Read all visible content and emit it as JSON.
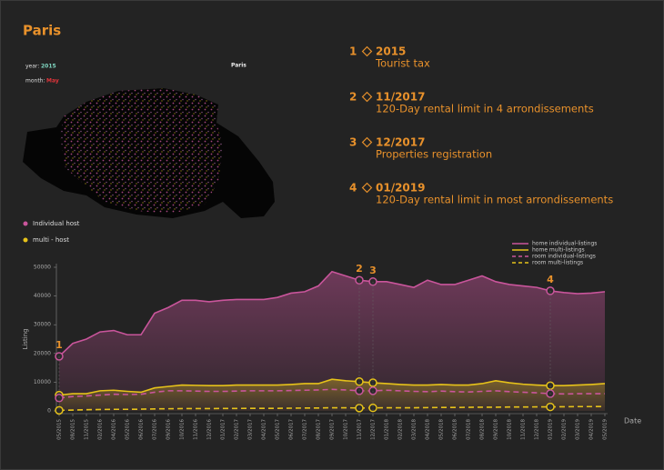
{
  "page_title": "Paris",
  "map": {
    "year_label": "year:",
    "year": "2015",
    "month_label": "month:",
    "month": "May",
    "name": "Paris"
  },
  "map_legend": [
    {
      "name": "Individual host",
      "color": "#c9559b"
    },
    {
      "name": "multi - host",
      "color": "#e6c21a"
    }
  ],
  "events": [
    {
      "number": "1",
      "date": "2015",
      "text": "Tourist tax"
    },
    {
      "number": "2",
      "date": "11/2017",
      "text": "120-Day rental limit in 4 arrondissements"
    },
    {
      "number": "3",
      "date": "12/2017",
      "text": "Properties registration"
    },
    {
      "number": "4",
      "date": "01/2019",
      "text": "120-Day rental limit in most arrondissements"
    }
  ],
  "chart_data": {
    "type": "line",
    "xlabel": "Date",
    "ylabel": "Listing",
    "categories": [
      "05/2015",
      "08/2015",
      "11/2015",
      "02/2016",
      "04/2016",
      "05/2016",
      "06/2016",
      "07/2016",
      "09/2016",
      "10/2016",
      "11/2016",
      "12/2016",
      "01/2017",
      "02/2017",
      "03/2017",
      "04/2017",
      "05/2017",
      "06/2017",
      "07/2017",
      "08/2017",
      "09/2017",
      "10/2017",
      "11/2017",
      "12/2017",
      "01/2018",
      "02/2018",
      "03/2018",
      "04/2018",
      "05/2018",
      "06/2018",
      "07/2018",
      "08/2018",
      "09/2018",
      "10/2018",
      "11/2018",
      "12/2018",
      "01/2019",
      "02/2019",
      "03/2019",
      "04/2019",
      "05/2019"
    ],
    "series": [
      {
        "name": "home individual-listings",
        "color": "#c9559b",
        "dashed": false,
        "values": [
          19000,
          23500,
          25000,
          27500,
          28000,
          26500,
          26500,
          34000,
          36000,
          38500,
          38500,
          38000,
          38500,
          38800,
          38800,
          38800,
          39500,
          41000,
          41500,
          43500,
          48500,
          47000,
          45500,
          45000,
          45000,
          44000,
          43000,
          45500,
          44000,
          44000,
          45500,
          47000,
          45000,
          44000,
          43500,
          43000,
          41800,
          41200,
          40800,
          41000,
          41500
        ]
      },
      {
        "name": "home multi-listings",
        "color": "#e6c21a",
        "dashed": false,
        "values": [
          5500,
          6000,
          6000,
          7000,
          7200,
          6800,
          6500,
          8000,
          8500,
          9000,
          8900,
          8800,
          8800,
          9000,
          9000,
          9000,
          9000,
          9200,
          9500,
          9500,
          11000,
          10500,
          10200,
          9800,
          9500,
          9200,
          9000,
          9000,
          9200,
          9000,
          9000,
          9500,
          10500,
          9800,
          9300,
          9000,
          8800,
          8800,
          9000,
          9200,
          9500
        ]
      },
      {
        "name": "room individual-listings",
        "color": "#c9559b",
        "dashed": true,
        "values": [
          4500,
          5000,
          5200,
          5500,
          5800,
          5700,
          5800,
          6500,
          7000,
          7000,
          6900,
          6800,
          6800,
          6900,
          7000,
          7000,
          7000,
          7100,
          7200,
          7300,
          7500,
          7300,
          7000,
          7000,
          7200,
          7000,
          6800,
          6700,
          6900,
          6700,
          6600,
          6800,
          7000,
          6700,
          6500,
          6300,
          6000,
          5900,
          6000,
          6000,
          6000
        ]
      },
      {
        "name": "room multi-listings",
        "color": "#e6c21a",
        "dashed": true,
        "values": [
          200,
          300,
          400,
          500,
          550,
          550,
          600,
          700,
          750,
          800,
          800,
          800,
          850,
          850,
          900,
          900,
          900,
          950,
          1000,
          1000,
          1100,
          1100,
          1000,
          1050,
          1100,
          1100,
          1100,
          1150,
          1200,
          1200,
          1250,
          1300,
          1300,
          1350,
          1350,
          1400,
          1400,
          1450,
          1500,
          1500,
          1550
        ]
      }
    ],
    "annotations": [
      {
        "label": "1",
        "x": "05/2015"
      },
      {
        "label": "2",
        "x": "11/2017"
      },
      {
        "label": "3",
        "x": "12/2017"
      },
      {
        "label": "4",
        "x": "01/2019"
      }
    ],
    "ylim": [
      0,
      50000
    ],
    "yticks": [
      0,
      10000,
      20000,
      30000,
      40000,
      50000
    ],
    "legend": "top-right",
    "grid": false
  }
}
